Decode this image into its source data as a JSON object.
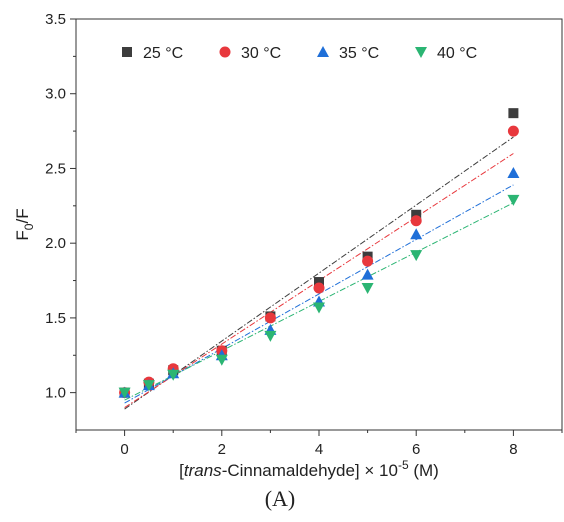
{
  "chart_data": {
    "type": "scatter",
    "xlabel": {
      "pre": "[",
      "italic": "trans",
      "post": "-Cinnamaldehyde] × 10",
      "sup": "-5",
      "unit": " (M)"
    },
    "ylabel": {
      "base": "F",
      "sub": "0",
      "post": "/F"
    },
    "xlim": [
      -1,
      9
    ],
    "ylim": [
      0.75,
      3.5
    ],
    "xticks": [
      0,
      2,
      4,
      6,
      8
    ],
    "xticks_minor": [
      -1,
      1,
      3,
      5,
      7,
      9
    ],
    "yticks": [
      1.0,
      1.5,
      2.0,
      2.5,
      3.0,
      3.5
    ],
    "ytick_labels": [
      "1.0",
      "1.5",
      "2.0",
      "2.5",
      "3.0",
      "3.5"
    ],
    "grid": false,
    "legend_position": "top",
    "panel_label": "(A)",
    "x": [
      0,
      0.5,
      1,
      2,
      3,
      4,
      5,
      6,
      8
    ],
    "series": [
      {
        "name": "25 °C",
        "marker": "square",
        "color": "#3d3d3d",
        "values": [
          1.0,
          1.06,
          1.15,
          1.28,
          1.51,
          1.74,
          1.91,
          2.19,
          2.87
        ],
        "fit": [
          0.89,
          0.2275
        ]
      },
      {
        "name": "30 °C",
        "marker": "circle",
        "color": "#e8383d",
        "values": [
          1.0,
          1.07,
          1.16,
          1.28,
          1.5,
          1.7,
          1.88,
          2.15,
          2.75
        ],
        "fit": [
          0.9,
          0.2125
        ]
      },
      {
        "name": "35 °C",
        "marker": "triangle-up",
        "color": "#1f6fd8",
        "values": [
          1.0,
          1.05,
          1.13,
          1.25,
          1.42,
          1.61,
          1.79,
          2.06,
          2.47
        ],
        "fit": [
          0.93,
          0.1825
        ]
      },
      {
        "name": "40 °C",
        "marker": "triangle-down",
        "color": "#2bb573",
        "values": [
          1.0,
          1.05,
          1.12,
          1.22,
          1.38,
          1.57,
          1.7,
          1.92,
          2.29
        ],
        "fit": [
          0.95,
          0.165
        ]
      }
    ]
  }
}
